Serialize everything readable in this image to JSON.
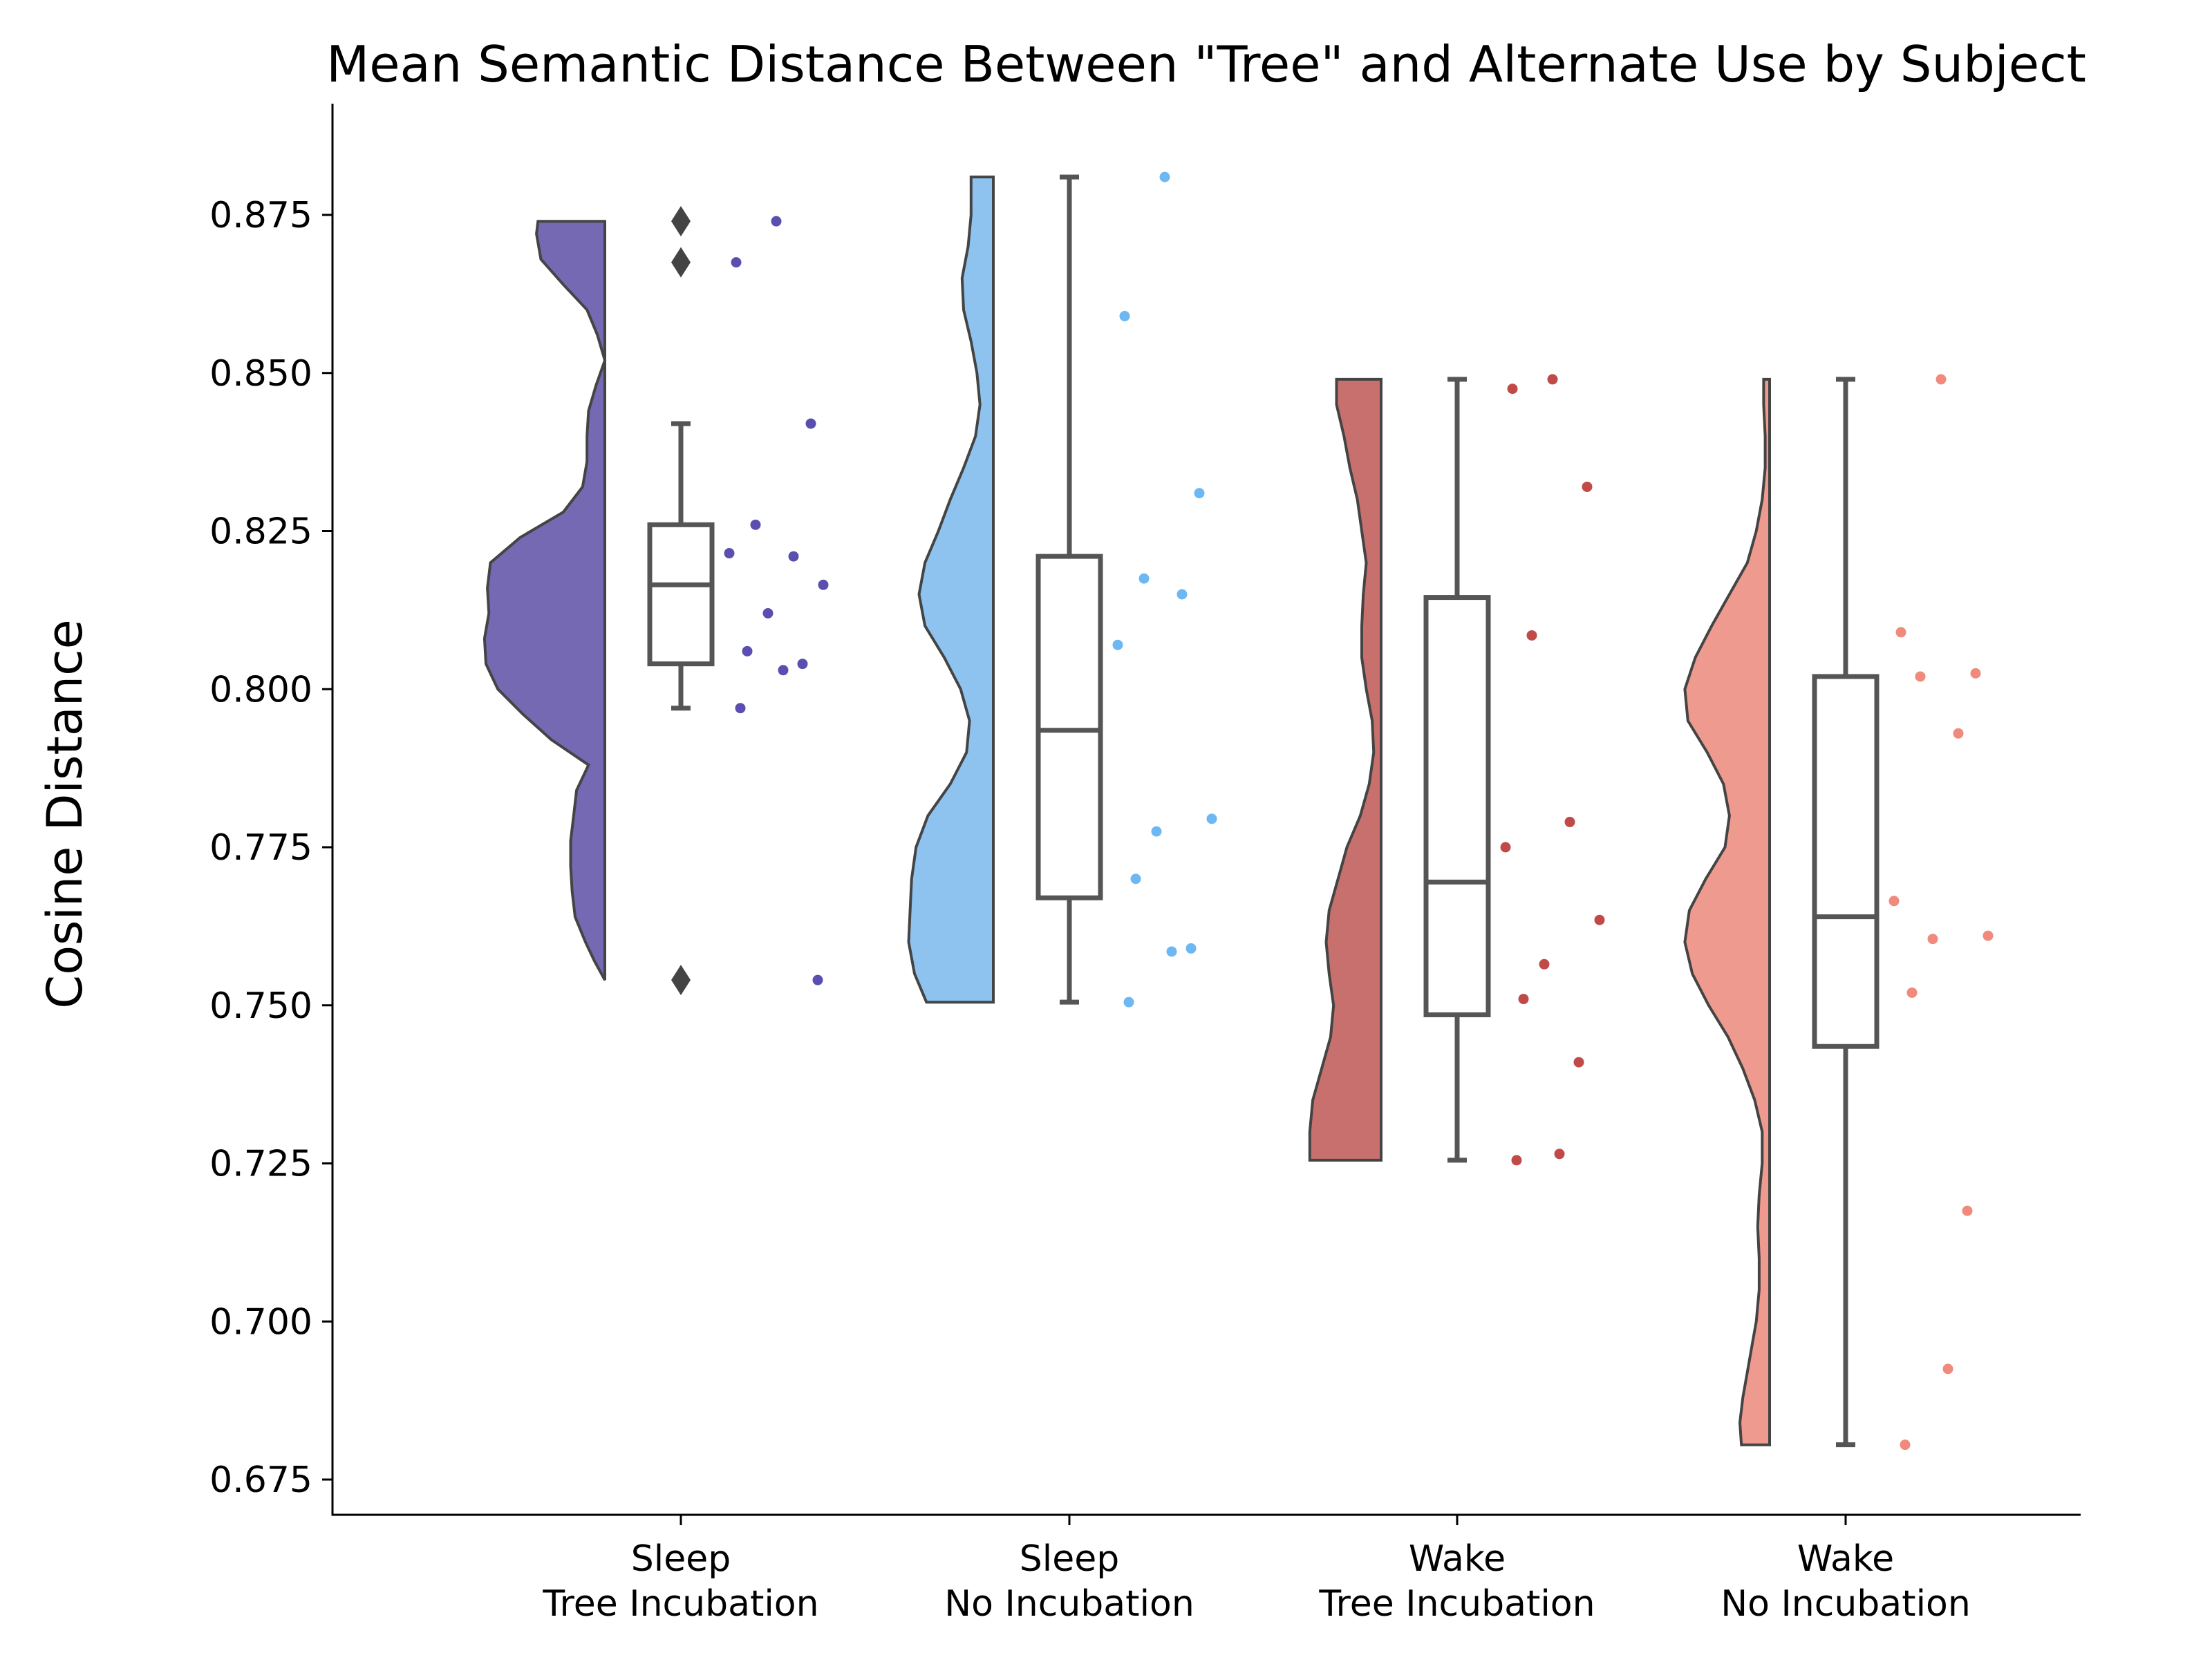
{
  "chart_data": {
    "type": "raincloud",
    "title": "Mean Semantic Distance Between \"Tree\" and Alternate Use by Subject",
    "xlabel": "",
    "ylabel": "Cosine Distance",
    "ylim": [
      0.669,
      0.891
    ],
    "yticks": [
      "0.675",
      "0.700",
      "0.725",
      "0.750",
      "0.775",
      "0.800",
      "0.825",
      "0.850",
      "0.875"
    ],
    "grid": false,
    "groups": [
      {
        "label_line1": "Sleep",
        "label_line2": "Tree Incubation",
        "color": "#7469b2",
        "box": {
          "whisker_low": 0.797,
          "q1": 0.804,
          "median": 0.8165,
          "q3": 0.826,
          "whisker_high": 0.842
        },
        "outliers": [
          0.874,
          0.8675,
          0.754
        ],
        "points": [
          0.874,
          0.8675,
          0.842,
          0.826,
          0.821,
          0.8215,
          0.8165,
          0.812,
          0.806,
          0.804,
          0.803,
          0.797,
          0.754
        ],
        "density": [
          [
            0.754,
            0.0
          ],
          [
            0.757,
            0.07
          ],
          [
            0.76,
            0.13
          ],
          [
            0.764,
            0.2
          ],
          [
            0.768,
            0.22
          ],
          [
            0.772,
            0.23
          ],
          [
            0.776,
            0.23
          ],
          [
            0.78,
            0.21
          ],
          [
            0.784,
            0.19
          ],
          [
            0.788,
            0.11
          ],
          [
            0.792,
            0.36
          ],
          [
            0.796,
            0.55
          ],
          [
            0.8,
            0.72
          ],
          [
            0.804,
            0.8
          ],
          [
            0.808,
            0.81
          ],
          [
            0.812,
            0.78
          ],
          [
            0.816,
            0.79
          ],
          [
            0.82,
            0.77
          ],
          [
            0.824,
            0.57
          ],
          [
            0.828,
            0.28
          ],
          [
            0.832,
            0.15
          ],
          [
            0.836,
            0.12
          ],
          [
            0.84,
            0.12
          ],
          [
            0.844,
            0.11
          ],
          [
            0.848,
            0.06
          ],
          [
            0.852,
            0.0
          ],
          [
            0.856,
            0.05
          ],
          [
            0.86,
            0.12
          ],
          [
            0.864,
            0.28
          ],
          [
            0.868,
            0.43
          ],
          [
            0.872,
            0.46
          ],
          [
            0.874,
            0.45
          ]
        ]
      },
      {
        "label_line1": "Sleep",
        "label_line2": "No Incubation",
        "color": "#8ec3ef",
        "box": {
          "whisker_low": 0.7505,
          "q1": 0.767,
          "median": 0.7935,
          "q3": 0.821,
          "whisker_high": 0.881
        },
        "outliers": [],
        "points": [
          0.881,
          0.859,
          0.831,
          0.8175,
          0.815,
          0.807,
          0.7795,
          0.7775,
          0.77,
          0.759,
          0.7585,
          0.7505
        ],
        "density": [
          [
            0.7505,
            0.45
          ],
          [
            0.755,
            0.53
          ],
          [
            0.76,
            0.57
          ],
          [
            0.765,
            0.56
          ],
          [
            0.77,
            0.55
          ],
          [
            0.775,
            0.52
          ],
          [
            0.78,
            0.44
          ],
          [
            0.785,
            0.29
          ],
          [
            0.79,
            0.18
          ],
          [
            0.795,
            0.16
          ],
          [
            0.8,
            0.22
          ],
          [
            0.805,
            0.33
          ],
          [
            0.81,
            0.46
          ],
          [
            0.815,
            0.5
          ],
          [
            0.82,
            0.46
          ],
          [
            0.825,
            0.37
          ],
          [
            0.83,
            0.29
          ],
          [
            0.835,
            0.2
          ],
          [
            0.84,
            0.12
          ],
          [
            0.845,
            0.09
          ],
          [
            0.85,
            0.11
          ],
          [
            0.855,
            0.15
          ],
          [
            0.86,
            0.2
          ],
          [
            0.865,
            0.21
          ],
          [
            0.87,
            0.17
          ],
          [
            0.875,
            0.15
          ],
          [
            0.881,
            0.15
          ]
        ]
      },
      {
        "label_line1": "Wake",
        "label_line2": "Tree Incubation",
        "color": "#c7706e",
        "box": {
          "whisker_low": 0.7255,
          "q1": 0.7485,
          "median": 0.7695,
          "q3": 0.8145,
          "whisker_high": 0.849
        },
        "outliers": [],
        "points": [
          0.849,
          0.8475,
          0.832,
          0.8085,
          0.779,
          0.775,
          0.7635,
          0.7565,
          0.751,
          0.741,
          0.7265,
          0.7255
        ],
        "density": [
          [
            0.7255,
            0.48
          ],
          [
            0.73,
            0.48
          ],
          [
            0.735,
            0.46
          ],
          [
            0.74,
            0.4
          ],
          [
            0.745,
            0.34
          ],
          [
            0.75,
            0.32
          ],
          [
            0.755,
            0.35
          ],
          [
            0.76,
            0.37
          ],
          [
            0.765,
            0.35
          ],
          [
            0.77,
            0.29
          ],
          [
            0.775,
            0.23
          ],
          [
            0.78,
            0.14
          ],
          [
            0.785,
            0.08
          ],
          [
            0.79,
            0.05
          ],
          [
            0.795,
            0.06
          ],
          [
            0.8,
            0.1
          ],
          [
            0.805,
            0.13
          ],
          [
            0.81,
            0.13
          ],
          [
            0.815,
            0.12
          ],
          [
            0.82,
            0.1
          ],
          [
            0.825,
            0.13
          ],
          [
            0.83,
            0.16
          ],
          [
            0.835,
            0.21
          ],
          [
            0.84,
            0.25
          ],
          [
            0.845,
            0.3
          ],
          [
            0.849,
            0.3
          ]
        ]
      },
      {
        "label_line1": "Wake",
        "label_line2": "No Incubation",
        "color": "#ef9a8f",
        "box": {
          "whisker_low": 0.6805,
          "q1": 0.7435,
          "median": 0.764,
          "q3": 0.802,
          "whisker_high": 0.849
        },
        "outliers": [],
        "points": [
          0.849,
          0.809,
          0.8025,
          0.802,
          0.793,
          0.7665,
          0.761,
          0.7605,
          0.752,
          0.7175,
          0.6925,
          0.6805
        ],
        "density": [
          [
            0.6805,
            0.19
          ],
          [
            0.684,
            0.2
          ],
          [
            0.688,
            0.18
          ],
          [
            0.692,
            0.15
          ],
          [
            0.696,
            0.12
          ],
          [
            0.7,
            0.09
          ],
          [
            0.705,
            0.07
          ],
          [
            0.71,
            0.07
          ],
          [
            0.715,
            0.08
          ],
          [
            0.72,
            0.07
          ],
          [
            0.725,
            0.05
          ],
          [
            0.73,
            0.05
          ],
          [
            0.735,
            0.1
          ],
          [
            0.74,
            0.18
          ],
          [
            0.745,
            0.28
          ],
          [
            0.75,
            0.41
          ],
          [
            0.755,
            0.52
          ],
          [
            0.76,
            0.57
          ],
          [
            0.765,
            0.54
          ],
          [
            0.77,
            0.43
          ],
          [
            0.775,
            0.3
          ],
          [
            0.78,
            0.27
          ],
          [
            0.785,
            0.31
          ],
          [
            0.79,
            0.42
          ],
          [
            0.795,
            0.55
          ],
          [
            0.8,
            0.57
          ],
          [
            0.805,
            0.5
          ],
          [
            0.81,
            0.39
          ],
          [
            0.815,
            0.27
          ],
          [
            0.82,
            0.15
          ],
          [
            0.825,
            0.09
          ],
          [
            0.83,
            0.05
          ],
          [
            0.835,
            0.03
          ],
          [
            0.84,
            0.03
          ],
          [
            0.845,
            0.04
          ],
          [
            0.849,
            0.04
          ]
        ]
      }
    ]
  }
}
